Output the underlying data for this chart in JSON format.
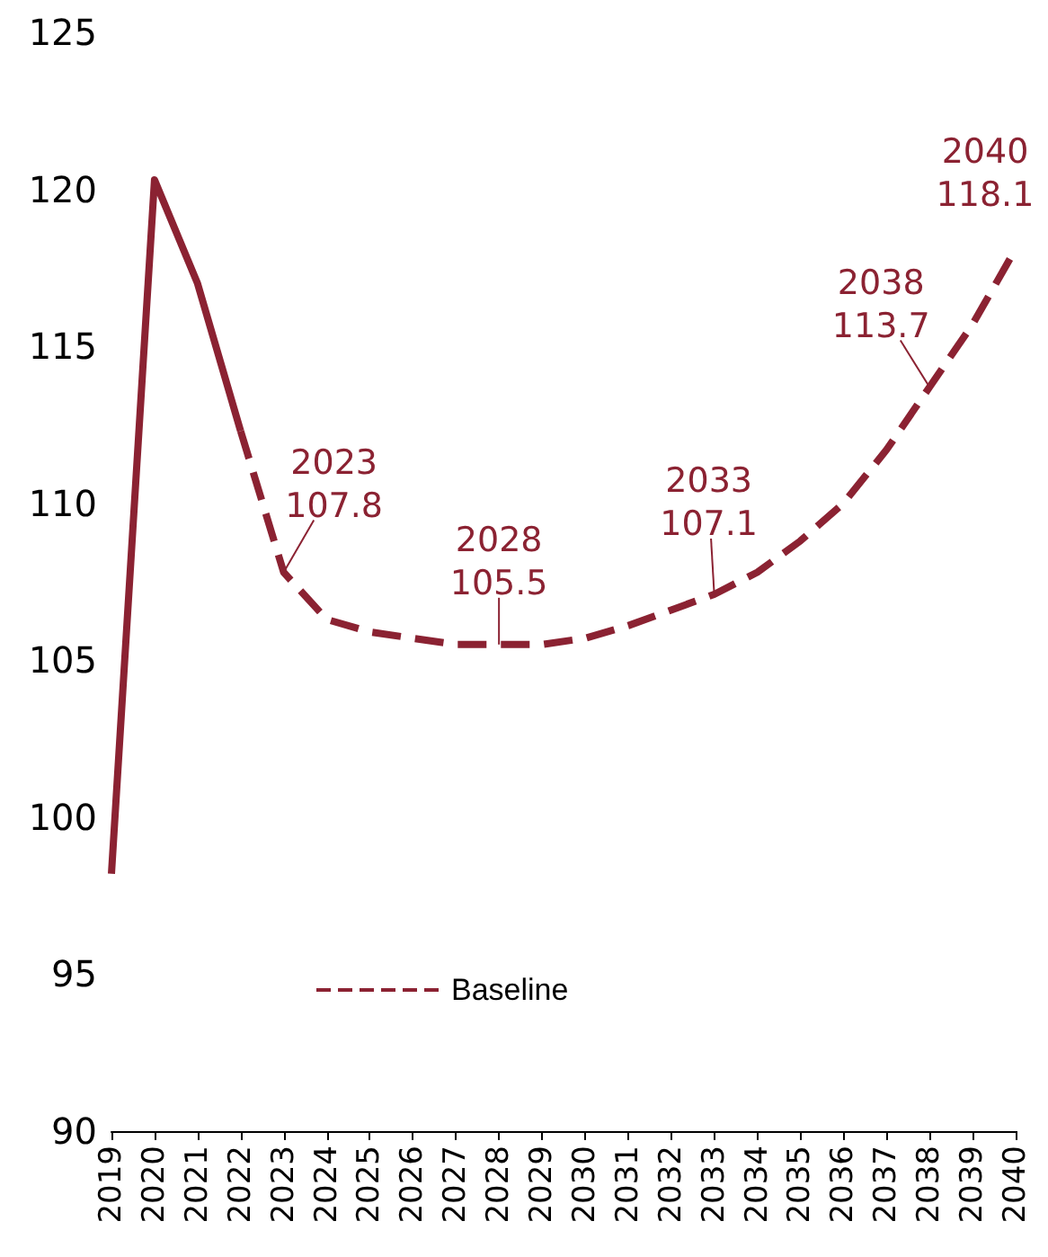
{
  "chart_data": {
    "type": "line",
    "categories": [
      "2019",
      "2020",
      "2021",
      "2022",
      "2023",
      "2024",
      "2025",
      "2026",
      "2027",
      "2028",
      "2029",
      "2030",
      "2031",
      "2032",
      "2033",
      "2034",
      "2035",
      "2036",
      "2037",
      "2038",
      "2039",
      "2040"
    ],
    "series": [
      {
        "color": "#8b2232",
        "line_style": "solid",
        "values": [
          98.2,
          120.3,
          117.0,
          112.3,
          null,
          null,
          null,
          null,
          null,
          null,
          null,
          null,
          null,
          null,
          null,
          null,
          null,
          null,
          null,
          null,
          null,
          null
        ]
      },
      {
        "name": "Baseline",
        "color": "#8b2232",
        "line_style": "dashed",
        "values": [
          null,
          null,
          null,
          112.3,
          107.8,
          106.3,
          105.9,
          105.7,
          105.5,
          105.5,
          105.5,
          105.7,
          106.1,
          106.6,
          107.1,
          107.8,
          108.8,
          110.0,
          111.7,
          113.7,
          115.7,
          118.1
        ]
      }
    ],
    "ylim": [
      90,
      125
    ],
    "yticks": [
      90,
      95,
      100,
      105,
      110,
      115,
      120,
      125
    ],
    "grid": false,
    "legend": "bottom",
    "marker": "none",
    "annotations": [
      {
        "text": "2023\n107.8",
        "x": "2023",
        "y": 107.8
      },
      {
        "text": "2028\n105.5",
        "x": "2028",
        "y": 105.5
      },
      {
        "text": "2033\n107.1",
        "x": "2033",
        "y": 107.1
      },
      {
        "text": "2038\n113.7",
        "x": "2038",
        "y": 113.7
      },
      {
        "text": "2040\n118.1",
        "x": "2040",
        "y": 118.1
      }
    ]
  }
}
